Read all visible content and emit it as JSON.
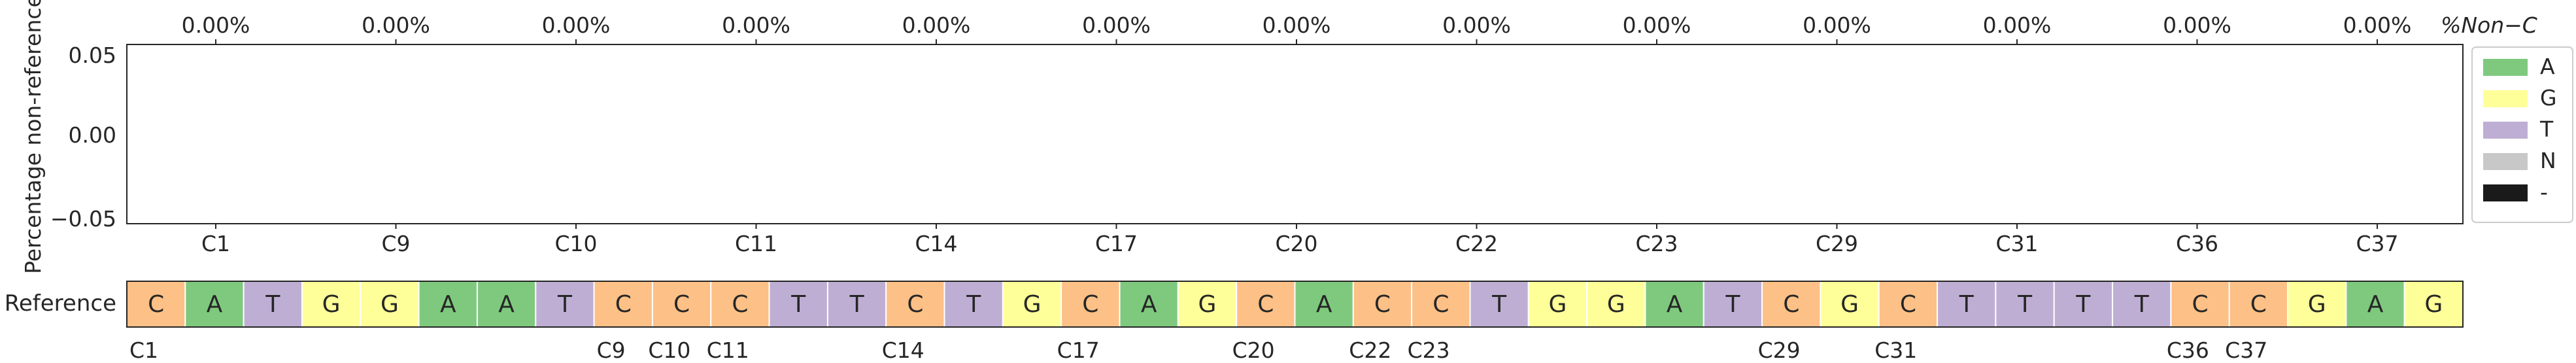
{
  "chart_data": {
    "type": "bar",
    "ylabel": "Percentage non-reference",
    "yticks": [
      "0.05",
      "0.00",
      "−0.05"
    ],
    "ylim": [
      -0.055,
      0.055
    ],
    "grid": false,
    "top_axis_label": "%Non−C",
    "columns": [
      {
        "label": "C1",
        "pct_label": "0.00%",
        "value": 0
      },
      {
        "label": "C9",
        "pct_label": "0.00%",
        "value": 0
      },
      {
        "label": "C10",
        "pct_label": "0.00%",
        "value": 0
      },
      {
        "label": "C11",
        "pct_label": "0.00%",
        "value": 0
      },
      {
        "label": "C14",
        "pct_label": "0.00%",
        "value": 0
      },
      {
        "label": "C17",
        "pct_label": "0.00%",
        "value": 0
      },
      {
        "label": "C20",
        "pct_label": "0.00%",
        "value": 0
      },
      {
        "label": "C22",
        "pct_label": "0.00%",
        "value": 0
      },
      {
        "label": "C23",
        "pct_label": "0.00%",
        "value": 0
      },
      {
        "label": "C29",
        "pct_label": "0.00%",
        "value": 0
      },
      {
        "label": "C31",
        "pct_label": "0.00%",
        "value": 0
      },
      {
        "label": "C36",
        "pct_label": "0.00%",
        "value": 0
      },
      {
        "label": "C37",
        "pct_label": "0.00%",
        "value": 0
      }
    ],
    "legend": {
      "placement": "right",
      "entries": [
        {
          "label": "A",
          "color": "#7fc97f"
        },
        {
          "label": "G",
          "color": "#ffff99"
        },
        {
          "label": "T",
          "color": "#beaed4"
        },
        {
          "label": "N",
          "color": "#c8c8c8"
        },
        {
          "label": "-",
          "color": "#1a1a1a"
        }
      ]
    },
    "reference": {
      "label": "Reference",
      "sequence": [
        "C",
        "A",
        "T",
        "G",
        "G",
        "A",
        "A",
        "T",
        "C",
        "C",
        "C",
        "T",
        "T",
        "C",
        "T",
        "G",
        "C",
        "A",
        "G",
        "C",
        "A",
        "C",
        "C",
        "T",
        "G",
        "G",
        "A",
        "T",
        "C",
        "G",
        "C",
        "T",
        "T",
        "T",
        "T",
        "C",
        "C",
        "G",
        "A",
        "G"
      ],
      "position_labels": [
        {
          "index": 0,
          "label": "C1"
        },
        {
          "index": 8,
          "label": "C9"
        },
        {
          "index": 9,
          "label": "C10"
        },
        {
          "index": 10,
          "label": "C11"
        },
        {
          "index": 13,
          "label": "C14"
        },
        {
          "index": 16,
          "label": "C17"
        },
        {
          "index": 19,
          "label": "C20"
        },
        {
          "index": 21,
          "label": "C22"
        },
        {
          "index": 22,
          "label": "C23"
        },
        {
          "index": 28,
          "label": "C29"
        },
        {
          "index": 30,
          "label": "C31"
        },
        {
          "index": 35,
          "label": "C36"
        },
        {
          "index": 36,
          "label": "C37"
        }
      ]
    },
    "colors": {
      "A": "#7fc97f",
      "G": "#ffff99",
      "T": "#beaed4",
      "C": "#fdc086",
      "N": "#c8c8c8",
      "-": "#1a1a1a"
    }
  }
}
